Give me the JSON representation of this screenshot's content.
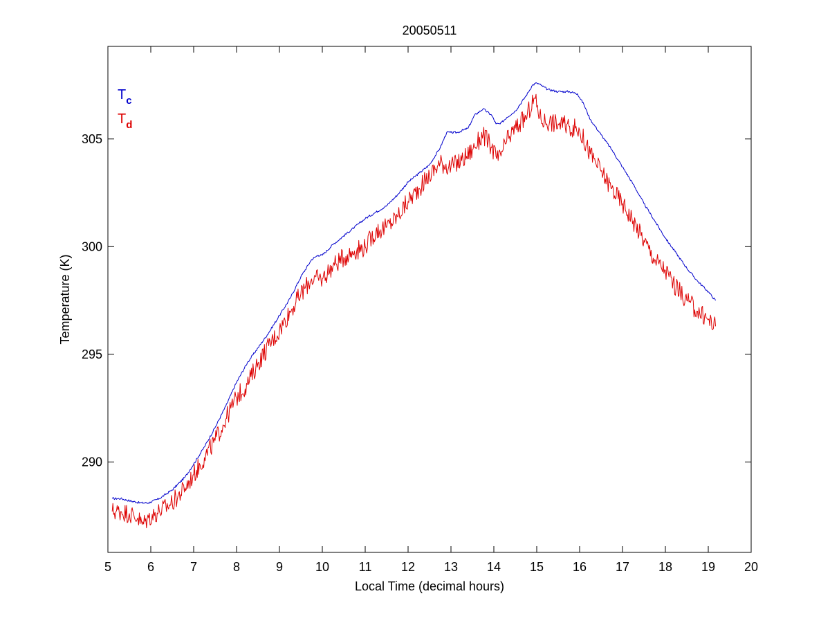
{
  "chart_data": {
    "type": "line",
    "title": "20050511",
    "xlabel": "Local Time (decimal hours)",
    "ylabel": "Temperature (K)",
    "xlim": [
      5,
      20
    ],
    "ylim": [
      285.8,
      309.3
    ],
    "xticks": [
      5,
      6,
      7,
      8,
      9,
      10,
      11,
      12,
      13,
      14,
      15,
      16,
      17,
      18,
      19,
      20
    ],
    "yticks": [
      290,
      295,
      300,
      305
    ],
    "grid": false,
    "legend_position": "top-left",
    "series": [
      {
        "name": "Tc",
        "label_main": "T",
        "label_sub": "c",
        "color": "#0000cc",
        "x": [
          5.1,
          5.3,
          5.5,
          5.75,
          5.95,
          6.2,
          6.5,
          6.8,
          7.0,
          7.25,
          7.5,
          7.75,
          8.0,
          8.25,
          8.5,
          8.75,
          9.0,
          9.25,
          9.5,
          9.75,
          9.9,
          10.0,
          10.25,
          10.5,
          10.75,
          11.0,
          11.25,
          11.5,
          11.75,
          12.0,
          12.25,
          12.5,
          12.75,
          12.9,
          13.0,
          13.15,
          13.4,
          13.55,
          13.75,
          13.95,
          14.05,
          14.15,
          14.3,
          14.5,
          14.75,
          14.9,
          15.0,
          15.1,
          15.25,
          15.5,
          15.75,
          15.95,
          16.1,
          16.25,
          16.5,
          16.75,
          17.0,
          17.25,
          17.5,
          17.75,
          18.0,
          18.25,
          18.5,
          18.75,
          19.0,
          19.17
        ],
        "y": [
          288.3,
          288.3,
          288.2,
          288.1,
          288.1,
          288.3,
          288.7,
          289.3,
          289.9,
          290.7,
          291.6,
          292.6,
          293.7,
          294.6,
          295.3,
          296.0,
          296.8,
          297.6,
          298.6,
          299.4,
          299.6,
          299.6,
          300.1,
          300.5,
          300.9,
          301.3,
          301.6,
          301.9,
          302.4,
          303.0,
          303.4,
          303.8,
          304.6,
          305.3,
          305.3,
          305.3,
          305.5,
          306.1,
          306.4,
          306.1,
          305.7,
          305.7,
          306.0,
          306.3,
          307.0,
          307.5,
          307.6,
          307.5,
          307.3,
          307.2,
          307.2,
          307.1,
          306.6,
          305.9,
          305.2,
          304.5,
          303.7,
          302.9,
          302.0,
          301.2,
          300.4,
          299.7,
          299.0,
          298.4,
          297.9,
          297.5
        ]
      },
      {
        "name": "Td",
        "label_main": "T",
        "label_sub": "d",
        "color": "#dd0000",
        "x": [
          5.1,
          5.3,
          5.5,
          5.7,
          5.8,
          5.95,
          6.2,
          6.5,
          6.8,
          7.0,
          7.25,
          7.5,
          7.75,
          8.0,
          8.25,
          8.5,
          8.75,
          9.0,
          9.25,
          9.5,
          9.75,
          10.0,
          10.25,
          10.5,
          10.75,
          11.0,
          11.25,
          11.5,
          11.75,
          12.0,
          12.25,
          12.5,
          12.75,
          13.0,
          13.25,
          13.5,
          13.75,
          13.95,
          14.1,
          14.3,
          14.5,
          14.75,
          14.95,
          15.1,
          15.3,
          15.5,
          15.75,
          16.0,
          16.25,
          16.5,
          16.75,
          17.0,
          17.25,
          17.5,
          17.75,
          18.0,
          18.25,
          18.5,
          18.75,
          19.0,
          19.17
        ],
        "y": [
          287.7,
          287.7,
          287.6,
          287.4,
          287.1,
          287.4,
          287.7,
          288.1,
          288.8,
          289.4,
          290.2,
          291.0,
          292.0,
          293.0,
          293.6,
          294.6,
          295.4,
          296.1,
          297.0,
          297.8,
          298.5,
          298.5,
          299.1,
          299.5,
          299.8,
          300.0,
          300.7,
          300.9,
          301.4,
          302.1,
          302.7,
          303.3,
          303.9,
          303.7,
          304.0,
          304.5,
          305.2,
          304.6,
          304.0,
          304.9,
          305.5,
          306.0,
          306.9,
          305.9,
          305.8,
          305.7,
          305.6,
          305.4,
          304.3,
          303.5,
          302.7,
          302.0,
          301.2,
          300.3,
          299.4,
          298.9,
          298.1,
          297.5,
          297.0,
          296.6,
          296.3
        ]
      }
    ]
  }
}
